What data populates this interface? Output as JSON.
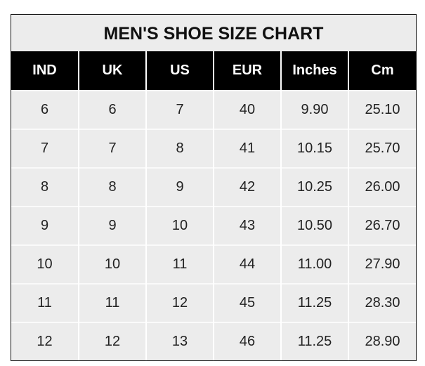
{
  "chart_data": {
    "type": "table",
    "title": "MEN'S SHOE SIZE CHART",
    "columns": [
      "IND",
      "UK",
      "US",
      "EUR",
      "Inches",
      "Cm"
    ],
    "rows": [
      [
        "6",
        "6",
        "7",
        "40",
        "9.90",
        "25.10"
      ],
      [
        "7",
        "7",
        "8",
        "41",
        "10.15",
        "25.70"
      ],
      [
        "8",
        "8",
        "9",
        "42",
        "10.25",
        "26.00"
      ],
      [
        "9",
        "9",
        "10",
        "43",
        "10.50",
        "26.70"
      ],
      [
        "10",
        "10",
        "11",
        "44",
        "11.00",
        "27.90"
      ],
      [
        "11",
        "11",
        "12",
        "45",
        "11.25",
        "28.30"
      ],
      [
        "12",
        "12",
        "13",
        "46",
        "11.25",
        "28.90"
      ]
    ],
    "colors": {
      "header_bg": "#000000",
      "header_text": "#ffffff",
      "cell_bg": "#ececec",
      "text": "#222222"
    }
  }
}
